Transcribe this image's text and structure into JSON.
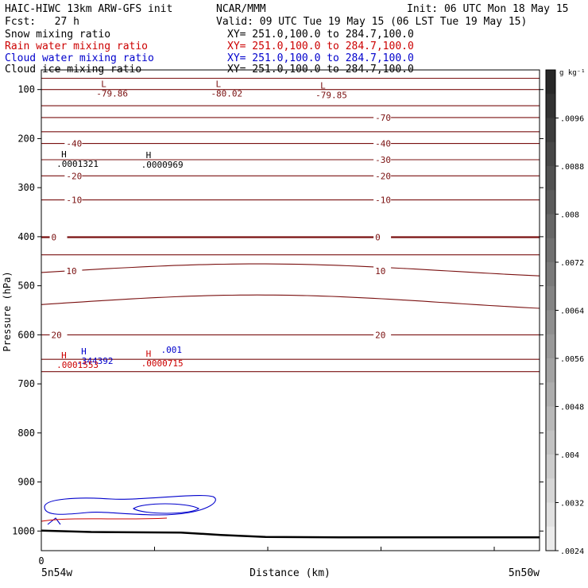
{
  "header": {
    "title_left": "HAIC-HIWC 13km ARW-GFS init",
    "center_name": "NCAR/MMM",
    "init": "Init: 06 UTC Mon 18 May 15",
    "fcst": "Fcst:   27 h",
    "valid": "Valid: 09 UTC Tue 19 May 15 (06 LST Tue 19 May 15)"
  },
  "fields": [
    {
      "label": "Snow mixing ratio",
      "xy": "XY= 251.0,100.0 to 284.7,100.0",
      "color": "#000000"
    },
    {
      "label": "Rain water mixing ratio",
      "xy": "XY= 251.0,100.0 to 284.7,100.0",
      "color": "#cc0000"
    },
    {
      "label": "Cloud water mixing ratio",
      "xy": "XY= 251.0,100.0 to 284.7,100.0",
      "color": "#0000cc"
    },
    {
      "label": "Cloud ice mixing ratio",
      "xy": "XY= 251.0,100.0 to 284.7,100.0",
      "color": "#000000"
    }
  ],
  "chart_data": {
    "type": "contour",
    "ylabel": "Pressure (hPa)",
    "xlabel": "Distance (km)",
    "y_ticks": [
      100,
      200,
      300,
      400,
      500,
      600,
      700,
      800,
      900,
      1000
    ],
    "x_zero_label": "0",
    "x_left_label": "5n54w",
    "x_right_label": "5n50w",
    "temperature_contours": [
      {
        "p": 77
      },
      {
        "p": 100
      },
      {
        "p": 133
      },
      {
        "p": 157,
        "label": "-70",
        "lx": 0.67
      },
      {
        "p": 186
      },
      {
        "p": 210,
        "label": "-40",
        "lx": [
          0.05,
          0.67
        ]
      },
      {
        "p": 243,
        "label": "-30",
        "lx": 0.67
      },
      {
        "p": 276,
        "label": "-20",
        "lx": [
          0.05,
          0.67
        ]
      },
      {
        "p": 325,
        "label": "-10",
        "lx": [
          0.05,
          0.67
        ]
      },
      {
        "p": 401,
        "label": "0",
        "lx": [
          0.02,
          0.67
        ],
        "bold": true
      },
      {
        "p": 437
      },
      {
        "p": 470,
        "label": "10",
        "lx": [
          0.05,
          0.67
        ],
        "wave": -0.9
      },
      {
        "p": 535,
        "wave": -1
      },
      {
        "p": 600,
        "label": "20",
        "lx": [
          0.02,
          0.67
        ]
      },
      {
        "p": 650
      },
      {
        "p": 675
      }
    ],
    "extrema": [
      {
        "type": "L",
        "value": "-79.86",
        "xf": 0.12,
        "p": 95
      },
      {
        "type": "L",
        "value": "-80.02",
        "xf": 0.35,
        "p": 95
      },
      {
        "type": "L",
        "value": "-79.85",
        "xf": 0.56,
        "p": 98
      },
      {
        "type": "H",
        "value": ".0001321",
        "xf": 0.04,
        "p": 238,
        "color": "#000000"
      },
      {
        "type": "H",
        "value": ".0000969",
        "xf": 0.21,
        "p": 240,
        "color": "#000000"
      },
      {
        "type": "H",
        "value": ".344392",
        "xf": 0.08,
        "p": 640,
        "color": "#0000cc"
      },
      {
        "type": "H",
        "value": ".0001553",
        "xf": 0.04,
        "p": 648,
        "color": "#cc0000"
      },
      {
        "type": "H",
        "value": ".0000715",
        "xf": 0.21,
        "p": 645,
        "color": "#cc0000"
      },
      {
        "type": "label",
        "value": ".001",
        "xf": 0.24,
        "p": 637,
        "color": "#0000cc"
      }
    ],
    "colorbar": {
      "units": "g kg⁻¹",
      "labels": [
        ".0096",
        ".0088",
        ".008",
        ".0072",
        ".0064",
        ".0056",
        ".0048",
        ".004",
        ".0032",
        ".0024"
      ]
    }
  }
}
